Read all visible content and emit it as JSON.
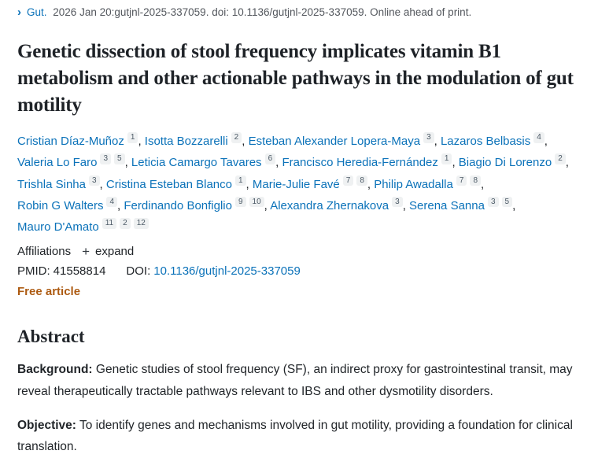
{
  "header": {
    "chevron_icon": "›",
    "journal": "Gut.",
    "citation": "2026 Jan 20:gutjnl-2025-337059. doi: 10.1136/gutjnl-2025-337059. Online ahead of print."
  },
  "title": "Genetic dissection of stool frequency implicates vitamin B1 metabolism and other actionable pathways in the modulation of gut motility",
  "authors": [
    {
      "name": "Cristian Díaz-Muñoz",
      "affs": [
        "1"
      ]
    },
    {
      "name": "Isotta Bozzarelli",
      "affs": [
        "2"
      ]
    },
    {
      "name": "Esteban Alexander Lopera-Maya",
      "affs": [
        "3"
      ]
    },
    {
      "name": "Lazaros Belbasis",
      "affs": [
        "4"
      ]
    },
    {
      "name": "Valeria Lo Faro",
      "affs": [
        "3",
        "5"
      ]
    },
    {
      "name": "Leticia Camargo Tavares",
      "affs": [
        "6"
      ]
    },
    {
      "name": "Francisco Heredia-Fernández",
      "affs": [
        "1"
      ]
    },
    {
      "name": "Biagio Di Lorenzo",
      "affs": [
        "2"
      ]
    },
    {
      "name": "Trishla Sinha",
      "affs": [
        "3"
      ]
    },
    {
      "name": "Cristina Esteban Blanco",
      "affs": [
        "1"
      ]
    },
    {
      "name": "Marie-Julie Favé",
      "affs": [
        "7",
        "8"
      ]
    },
    {
      "name": "Philip Awadalla",
      "affs": [
        "7",
        "8"
      ]
    },
    {
      "name": "Robin G Walters",
      "affs": [
        "4"
      ]
    },
    {
      "name": "Ferdinando Bonfiglio",
      "affs": [
        "9",
        "10"
      ]
    },
    {
      "name": "Alexandra Zhernakova",
      "affs": [
        "3"
      ]
    },
    {
      "name": "Serena Sanna",
      "affs": [
        "3",
        "5"
      ]
    },
    {
      "name": "Mauro D'Amato",
      "affs": [
        "11",
        "2",
        "12"
      ]
    }
  ],
  "meta": {
    "affiliations_label": "Affiliations",
    "plus_icon": "+",
    "expand_label": "expand",
    "pmid_label": "PMID:",
    "pmid": "41558814",
    "doi_label": "DOI:",
    "doi": "10.1136/gutjnl-2025-337059",
    "free_article": "Free article"
  },
  "abstract": {
    "heading": "Abstract",
    "sections": [
      {
        "label": "Background:",
        "text": "Genetic studies of stool frequency (SF), an indirect proxy for gastrointestinal transit, may reveal therapeutically tractable pathways relevant to IBS and other dysmotility disorders."
      },
      {
        "label": "Objective:",
        "text": "To identify genes and mechanisms involved in gut motility, providing a foundation for clinical translation."
      }
    ]
  },
  "colors": {
    "link_blue": "#0b72b9",
    "free_article_orange": "#ad5b12",
    "badge_bg": "#eff1f2",
    "badge_text": "#4c5a66",
    "text_dark": "#212529"
  }
}
